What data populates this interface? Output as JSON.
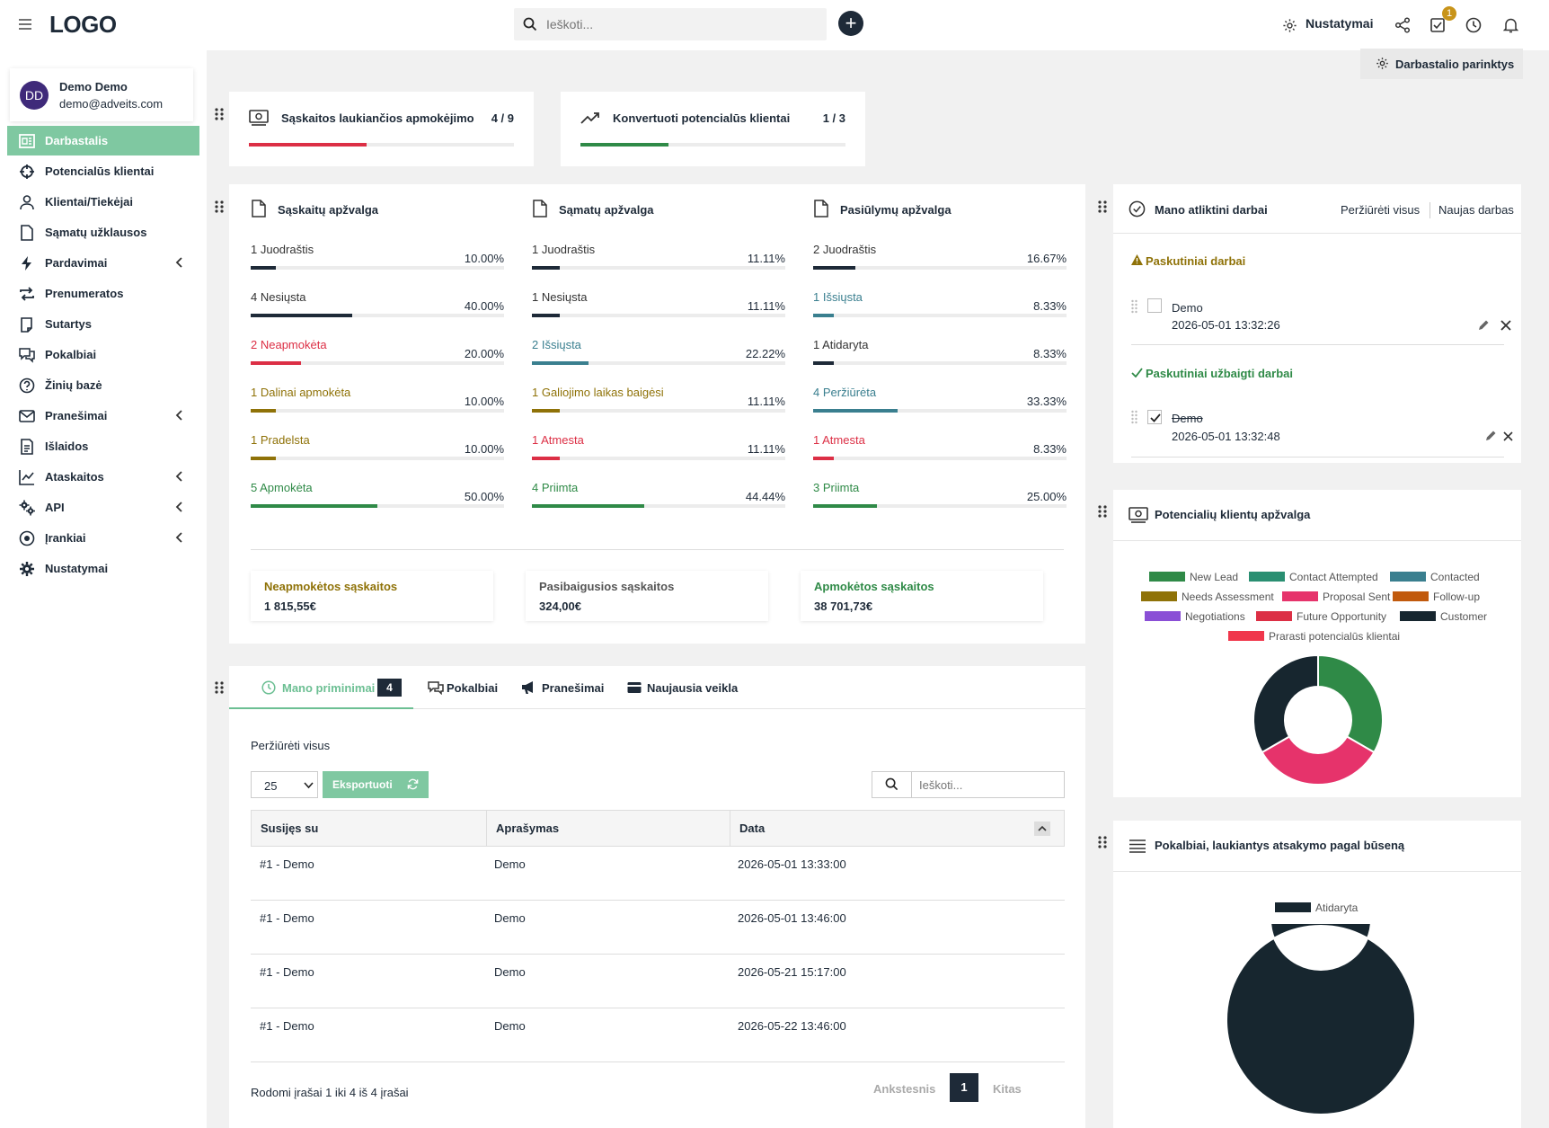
{
  "header": {
    "logo": "LOGO",
    "search_placeholder": "Ieškoti...",
    "add_label": "+",
    "settings_label": "Nustatymai",
    "tasks_badge": "1"
  },
  "sidebar": {
    "user": {
      "initials": "DD",
      "name": "Demo Demo",
      "email": "demo@adveits.com"
    },
    "items": [
      {
        "label": "Darbastalis",
        "icon": "dashboard-icon",
        "active": true,
        "submenu": false
      },
      {
        "label": "Potencialūs klientai",
        "icon": "crosshair-icon",
        "active": false,
        "submenu": false
      },
      {
        "label": "Klientai/Tiekėjai",
        "icon": "user-icon",
        "active": false,
        "submenu": false
      },
      {
        "label": "Sąmatų užklausos",
        "icon": "file-icon",
        "active": false,
        "submenu": false
      },
      {
        "label": "Pardavimai",
        "icon": "bolt-icon",
        "active": false,
        "submenu": true
      },
      {
        "label": "Prenumeratos",
        "icon": "repeat-icon",
        "active": false,
        "submenu": false
      },
      {
        "label": "Sutartys",
        "icon": "contract-icon",
        "active": false,
        "submenu": false
      },
      {
        "label": "Pokalbiai",
        "icon": "chat-icon",
        "active": false,
        "submenu": false
      },
      {
        "label": "Žinių bazė",
        "icon": "question-icon",
        "active": false,
        "submenu": false
      },
      {
        "label": "Pranešimai",
        "icon": "mail-icon",
        "active": false,
        "submenu": true
      },
      {
        "label": "Išlaidos",
        "icon": "receipt-icon",
        "active": false,
        "submenu": false
      },
      {
        "label": "Ataskaitos",
        "icon": "chart-icon",
        "active": false,
        "submenu": true
      },
      {
        "label": "API",
        "icon": "cogs-icon",
        "active": false,
        "submenu": true
      },
      {
        "label": "Įrankiai",
        "icon": "target-icon",
        "active": false,
        "submenu": true
      },
      {
        "label": "Nustatymai",
        "icon": "gear-icon",
        "active": false,
        "submenu": false
      }
    ]
  },
  "dashboard_options_label": "Darbastalio parinktys",
  "stats": [
    {
      "title": "Sąskaitos laukiančios apmokėjimo",
      "count": "4 / 9",
      "progress": 0.444,
      "color": "#dc2f45",
      "icon": "money-icon"
    },
    {
      "title": "Konvertuoti potencialūs klientai",
      "count": "1 / 3",
      "progress": 0.333,
      "color": "#2f8a47",
      "icon": "trend-up-icon"
    }
  ],
  "overviews": [
    {
      "title": "Sąskaitų apžvalga",
      "rows": [
        {
          "label": "1 Juodraštis",
          "pct": "10.00%",
          "value": 10,
          "color": "#1e2a38"
        },
        {
          "label": "4 Nesiųsta",
          "pct": "40.00%",
          "value": 40,
          "color": "#1e2a38"
        },
        {
          "label": "2 Neapmokėta",
          "pct": "20.00%",
          "value": 20,
          "color": "#dc2f45"
        },
        {
          "label": "1 Dalinai apmokėta",
          "pct": "10.00%",
          "value": 10,
          "color": "#8f7208"
        },
        {
          "label": "1 Pradelsta",
          "pct": "10.00%",
          "value": 10,
          "color": "#8f7208"
        },
        {
          "label": "5 Apmokėta",
          "pct": "50.00%",
          "value": 50,
          "color": "#2f8a47"
        }
      ]
    },
    {
      "title": "Sąmatų apžvalga",
      "rows": [
        {
          "label": "1 Juodraštis",
          "pct": "11.11%",
          "value": 11.11,
          "color": "#1e2a38"
        },
        {
          "label": "1 Nesiųsta",
          "pct": "11.11%",
          "value": 11.11,
          "color": "#1e2a38"
        },
        {
          "label": "2 Išsiųsta",
          "pct": "22.22%",
          "value": 22.22,
          "color": "#3a7f8f"
        },
        {
          "label": "1 Galiojimo laikas baigėsi",
          "pct": "11.11%",
          "value": 11.11,
          "color": "#8f7208"
        },
        {
          "label": "1 Atmesta",
          "pct": "11.11%",
          "value": 11.11,
          "color": "#dc2f45"
        },
        {
          "label": "4 Priimta",
          "pct": "44.44%",
          "value": 44.44,
          "color": "#2f8a47"
        }
      ]
    },
    {
      "title": "Pasiūlymų apžvalga",
      "rows": [
        {
          "label": "2 Juodraštis",
          "pct": "16.67%",
          "value": 16.67,
          "color": "#1e2a38"
        },
        {
          "label": "1 Išsiųsta",
          "pct": "8.33%",
          "value": 8.33,
          "color": "#3a7f8f"
        },
        {
          "label": "1 Atidaryta",
          "pct": "8.33%",
          "value": 8.33,
          "color": "#1e2a38"
        },
        {
          "label": "4 Peržiūrėta",
          "pct": "33.33%",
          "value": 33.33,
          "color": "#3a7f8f"
        },
        {
          "label": "1 Atmesta",
          "pct": "8.33%",
          "value": 8.33,
          "color": "#dc2f45"
        },
        {
          "label": "3 Priimta",
          "pct": "25.00%",
          "value": 25,
          "color": "#2f8a47"
        }
      ]
    }
  ],
  "summaries": [
    {
      "title": "Neapmokėtos sąskaitos",
      "value": "1 815,55€",
      "color": "#8f7208"
    },
    {
      "title": "Pasibaigusios sąskaitos",
      "value": "324,00€",
      "color": "#555555"
    },
    {
      "title": "Apmokėtos sąskaitos",
      "value": "38 701,73€",
      "color": "#2f8a47"
    }
  ],
  "tasks": {
    "title": "Mano atliktini darbai",
    "view_all": "Peržiūrėti visus",
    "new_task": "Naujas darbas",
    "recent_label": "Paskutiniai darbai",
    "recent": [
      {
        "name": "Demo",
        "date": "2026-05-01 13:32:26",
        "done": false
      }
    ],
    "completed_label": "Paskutiniai užbaigti darbai",
    "completed": [
      {
        "name": "Demo",
        "date": "2026-05-01 13:32:48",
        "done": true
      }
    ]
  },
  "reminders": {
    "tabs": [
      {
        "label": "Mano priminimai",
        "badge": "4",
        "active": true,
        "icon": "clock-icon"
      },
      {
        "label": "Pokalbiai",
        "active": false,
        "icon": "chat-icon"
      },
      {
        "label": "Pranešimai",
        "active": false,
        "icon": "megaphone-icon"
      },
      {
        "label": "Naujausia veikla",
        "active": false,
        "icon": "card-icon"
      }
    ],
    "view_all": "Peržiūrėti visus",
    "page_size": "25",
    "export_label": "Eksportuoti",
    "search_placeholder": "Ieškoti...",
    "columns": [
      "Susijęs su",
      "Aprašymas",
      "Data"
    ],
    "rows": [
      [
        "#1 - Demo",
        "Demo",
        "2026-05-01 13:33:00"
      ],
      [
        "#1 - Demo",
        "Demo",
        "2026-05-01 13:46:00"
      ],
      [
        "#1 - Demo",
        "Demo",
        "2026-05-21 15:17:00"
      ],
      [
        "#1 - Demo",
        "Demo",
        "2026-05-22 13:46:00"
      ]
    ],
    "info": "Rodomi įrašai 1 iki 4 iš 4 įrašai",
    "prev": "Ankstesnis",
    "page": "1",
    "next": "Kitas"
  },
  "leads_chart": {
    "title": "Potencialių klientų apžvalga",
    "legend": [
      {
        "label": "New Lead",
        "color": "#2f8a47"
      },
      {
        "label": "Contact Attempted",
        "color": "#2a8f72"
      },
      {
        "label": "Contacted",
        "color": "#3a7f8f"
      },
      {
        "label": "Needs Assessment",
        "color": "#8f7208"
      },
      {
        "label": "Proposal Sent",
        "color": "#e6336b"
      },
      {
        "label": "Follow-up",
        "color": "#c15a0d"
      },
      {
        "label": "Negotiations",
        "color": "#8a4fd6"
      },
      {
        "label": "Future Opportunity",
        "color": "#dc2f45"
      },
      {
        "label": "Customer",
        "color": "#17262f"
      },
      {
        "label": "Prarasti potencialūs klientai",
        "color": "#f0374c"
      }
    ],
    "chart_data": {
      "type": "pie",
      "labels": [
        "New Lead",
        "Proposal Sent",
        "Customer"
      ],
      "values": [
        1,
        1,
        1
      ],
      "colors": [
        "#2f8a47",
        "#e6336b",
        "#17262f"
      ]
    }
  },
  "chats_chart": {
    "title": "Pokalbiai, laukiantys atsakymo pagal būseną",
    "legend": [
      {
        "label": "Atidaryta",
        "color": "#17262f"
      }
    ],
    "chart_data": {
      "type": "pie",
      "labels": [
        "Atidaryta"
      ],
      "values": [
        1
      ],
      "colors": [
        "#17262f"
      ]
    }
  }
}
